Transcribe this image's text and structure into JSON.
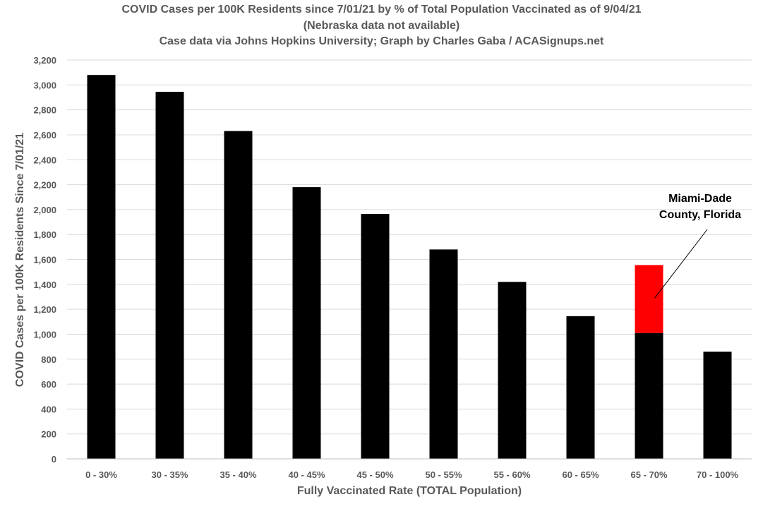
{
  "chart_data": {
    "type": "bar",
    "title": [
      "COVID Cases per 100K Residents since 7/01/21 by % of Total Population Vaccinated as of 9/04/21",
      "(Nebraska data not available)",
      "Case data via Johns Hopkins University; Graph by Charles Gaba / ACASignups.net"
    ],
    "xlabel": "Fully Vaccinated Rate (TOTAL Population)",
    "ylabel": "COVID Cases per 100K Residents Since 7/01/21",
    "ylim": [
      0,
      3200
    ],
    "yticks": [
      0,
      200,
      400,
      600,
      800,
      1000,
      1200,
      1400,
      1600,
      1800,
      2000,
      2200,
      2400,
      2600,
      2800,
      3000,
      3200
    ],
    "ytick_labels": [
      "0",
      "200",
      "400",
      "600",
      "800",
      "1,000",
      "1,200",
      "1,400",
      "1,600",
      "1,800",
      "2,000",
      "2,200",
      "2,400",
      "2,600",
      "2,800",
      "3,000",
      "3,200"
    ],
    "grid": true,
    "legend": "none",
    "categories": [
      "0 - 30%",
      "30 - 35%",
      "35 - 40%",
      "40 - 45%",
      "45 - 50%",
      "50 - 55%",
      "55 - 60%",
      "60 - 65%",
      "65 - 70%",
      "70 - 100%"
    ],
    "series": [
      {
        "values": [
          3080,
          2945,
          2630,
          2180,
          1965,
          1680,
          1420,
          1145,
          1010,
          860
        ],
        "color": "#000000"
      },
      {
        "values": [
          0,
          0,
          0,
          0,
          0,
          0,
          0,
          0,
          545,
          0
        ],
        "color": "#ff0000"
      }
    ],
    "annotation": {
      "lines": [
        "Miami-Dade",
        "County, Florida"
      ],
      "category": "65 - 70%",
      "points_to_value": 1290,
      "color": "#000000"
    }
  }
}
